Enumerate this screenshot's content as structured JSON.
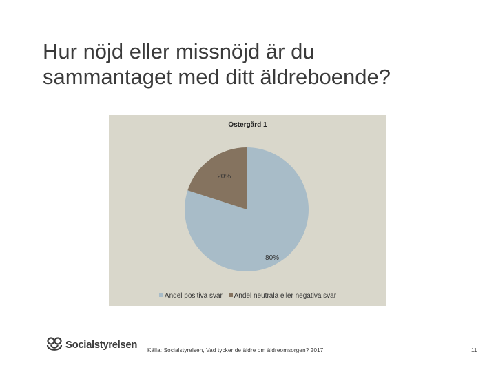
{
  "slide": {
    "title_line1": "Hur nöjd eller missnöjd är du",
    "title_line2": "sammantaget med ditt äldreboende?",
    "source": "Källa: Socialstyrelsen, Vad tycker de äldre om äldreomsorgen? 2017",
    "page_number": "11",
    "logo_text": "Socialstyrelsen",
    "logo_icon": "socialstyrelsen-logo-icon"
  },
  "colors": {
    "panel_background": "#d9d7cb",
    "positive": "#a8bcc8",
    "neutral_negative": "#85735f"
  },
  "chart_data": {
    "type": "pie",
    "title": "Östergård 1",
    "series": [
      {
        "name": "Andel positiva svar",
        "value": 80,
        "label": "80%",
        "color": "#a8bcc8"
      },
      {
        "name": "Andel neutrala eller negativa svar",
        "value": 20,
        "label": "20%",
        "color": "#85735f"
      }
    ],
    "start_angle": "12 o'clock",
    "direction": "clockwise",
    "legend_position": "bottom"
  }
}
